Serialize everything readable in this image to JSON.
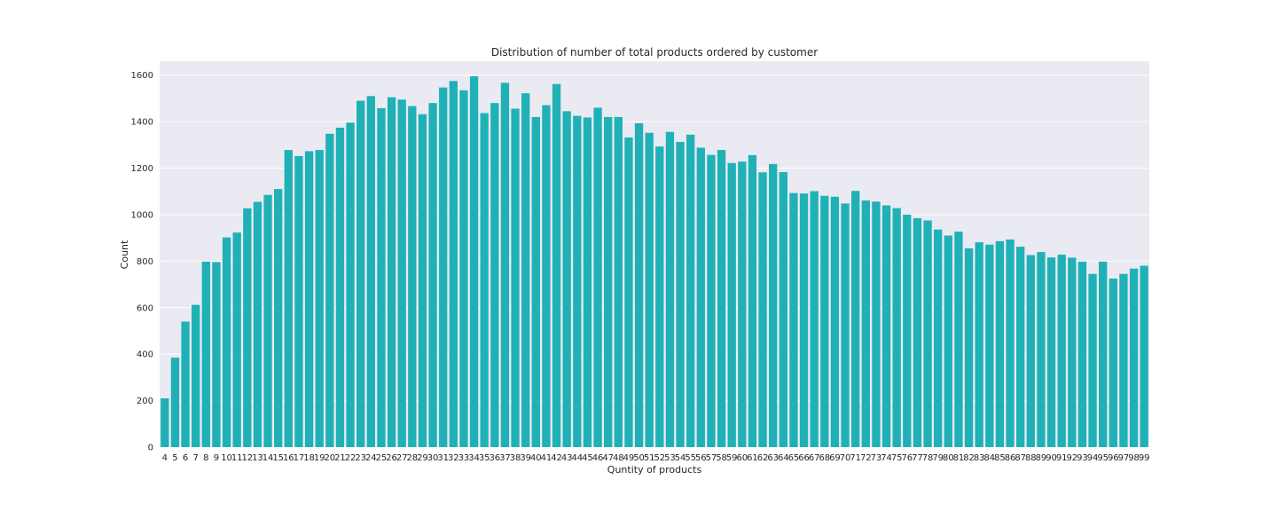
{
  "chart_data": {
    "type": "bar",
    "title": "Distribution of number of total products ordered by customer",
    "xlabel": "Quntity of products",
    "ylabel": "Count",
    "ylim": [
      0,
      1660
    ],
    "yticks": [
      0,
      200,
      400,
      600,
      800,
      1000,
      1200,
      1400,
      1600
    ],
    "grid": true,
    "colors": {
      "bar": "#1fb1b6",
      "plot_bg": "#eaeaf2",
      "grid": "#ffffff"
    },
    "categories": [
      "4",
      "5",
      "6",
      "7",
      "8",
      "9",
      "10",
      "11",
      "12",
      "13",
      "14",
      "15",
      "16",
      "17",
      "18",
      "19",
      "20",
      "21",
      "22",
      "23",
      "24",
      "25",
      "26",
      "27",
      "28",
      "29",
      "30",
      "31",
      "32",
      "33",
      "34",
      "35",
      "36",
      "37",
      "38",
      "39",
      "40",
      "41",
      "42",
      "43",
      "44",
      "45",
      "46",
      "47",
      "48",
      "49",
      "50",
      "51",
      "52",
      "53",
      "54",
      "55",
      "56",
      "57",
      "58",
      "59",
      "60",
      "61",
      "62",
      "63",
      "64",
      "65",
      "66",
      "67",
      "68",
      "69",
      "70",
      "71",
      "72",
      "73",
      "74",
      "75",
      "76",
      "77",
      "78",
      "79",
      "80",
      "81",
      "82",
      "83",
      "84",
      "85",
      "86",
      "87",
      "88",
      "89",
      "90",
      "91",
      "92",
      "93",
      "94",
      "95",
      "96",
      "97",
      "98",
      "99"
    ],
    "values": [
      210,
      385,
      540,
      612,
      798,
      796,
      902,
      923,
      1027,
      1055,
      1085,
      1110,
      1278,
      1252,
      1273,
      1278,
      1348,
      1374,
      1396,
      1490,
      1510,
      1458,
      1505,
      1495,
      1467,
      1432,
      1480,
      1547,
      1575,
      1535,
      1595,
      1437,
      1480,
      1567,
      1456,
      1522,
      1420,
      1471,
      1562,
      1445,
      1425,
      1418,
      1460,
      1420,
      1420,
      1332,
      1393,
      1352,
      1293,
      1356,
      1313,
      1344,
      1288,
      1257,
      1278,
      1222,
      1228,
      1256,
      1182,
      1218,
      1183,
      1093,
      1091,
      1101,
      1081,
      1077,
      1048,
      1102,
      1061,
      1056,
      1040,
      1028,
      1000,
      985,
      975,
      936,
      910,
      927,
      855,
      881,
      871,
      886,
      893,
      862,
      826,
      839,
      816,
      828,
      815,
      798,
      745,
      798,
      725,
      745,
      768,
      780
    ]
  }
}
